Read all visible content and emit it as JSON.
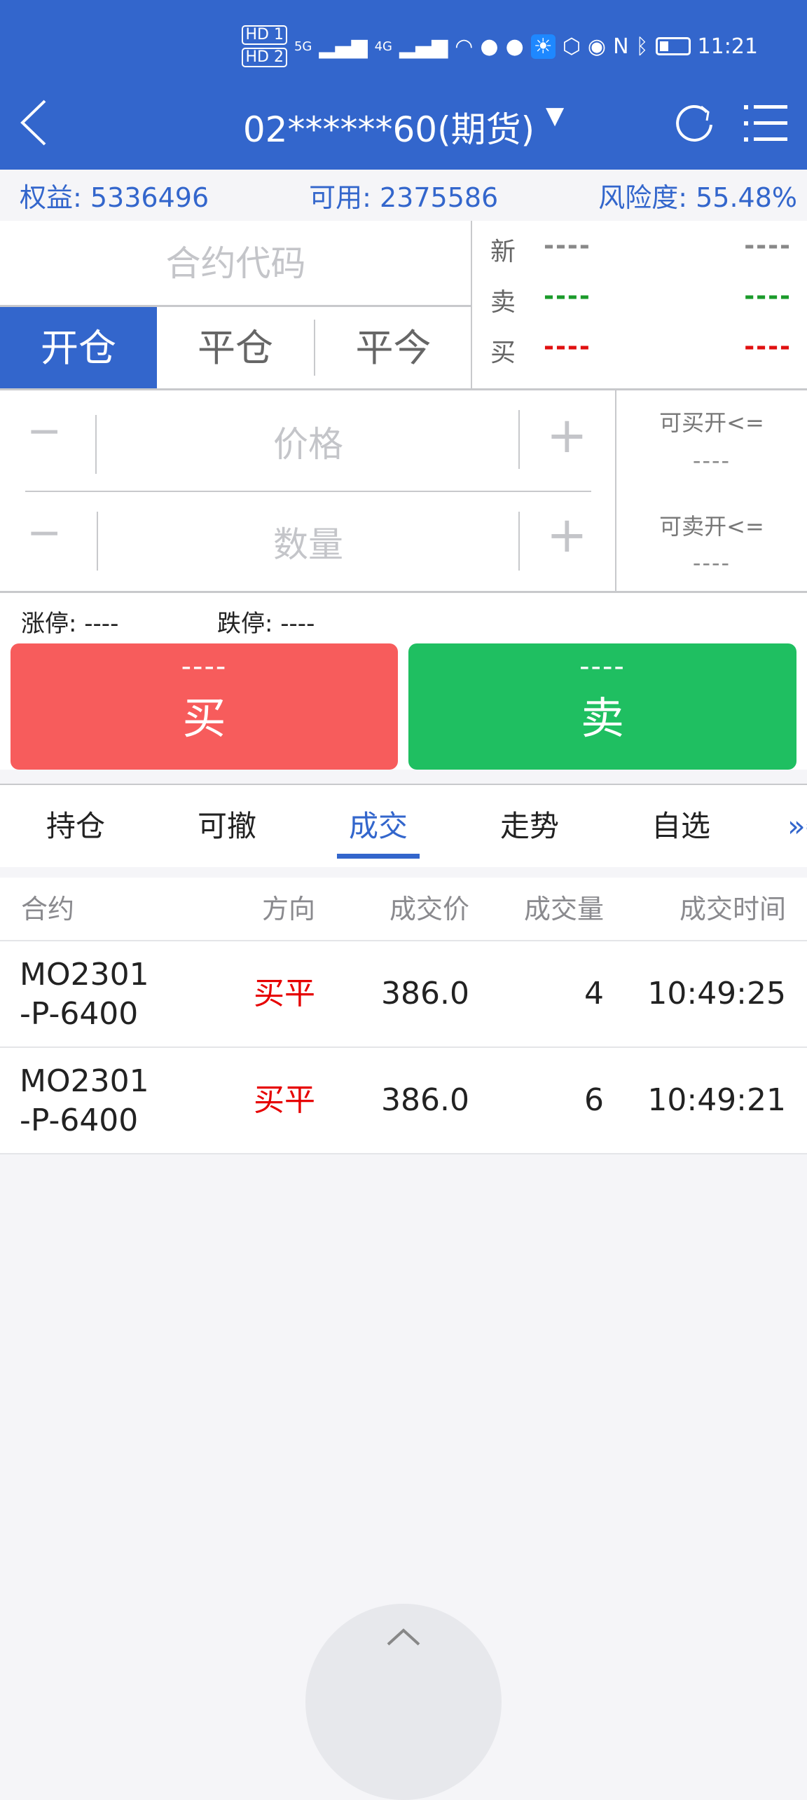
{
  "status_bar": {
    "time": "11:21",
    "sim1": "HD 1",
    "sim2": "HD 2",
    "net1": "5G",
    "net2": "4G",
    "icons": [
      "signal-icon",
      "wifi-icon",
      "wechat-icon",
      "message-icon",
      "weather-icon",
      "hand-icon",
      "eye-icon",
      "nfc-icon",
      "bluetooth-icon",
      "battery-icon"
    ]
  },
  "header": {
    "title": "02******60(期货)",
    "dropdown": "▼"
  },
  "account": {
    "equity_label": "权益: 5336496",
    "available_label": "可用: 2375586",
    "risk_label": "风险度: 55.48%"
  },
  "order": {
    "contract_placeholder": "合约代码",
    "modes": [
      "开仓",
      "平仓",
      "平今"
    ],
    "active_mode": "开仓",
    "quote": [
      {
        "label": "新",
        "left": "----",
        "right": "----",
        "color": "#888888"
      },
      {
        "label": "卖",
        "left": "----",
        "right": "----",
        "color": "#1a9a2a"
      },
      {
        "label": "买",
        "left": "----",
        "right": "----",
        "color": "#e01010"
      }
    ],
    "price_placeholder": "价格",
    "qty_placeholder": "数量",
    "minus": "−",
    "plus": "+",
    "can_buy_label": "可买开<=",
    "can_buy_value": "----",
    "can_sell_label": "可卖开<=",
    "can_sell_value": "----",
    "limit_up": "涨停: ----",
    "limit_down": "跌停: ----",
    "buy": {
      "price": "----",
      "label": "买",
      "color": "#f75c5c"
    },
    "sell": {
      "price": "----",
      "label": "卖",
      "color": "#1fbf61"
    }
  },
  "tabs": {
    "items": [
      "持仓",
      "可撤",
      "成交",
      "走势",
      "自选"
    ],
    "active": "成交",
    "more": "»委"
  },
  "trades": {
    "columns": [
      "合约",
      "方向",
      "成交价",
      "成交量",
      "成交时间"
    ],
    "rows": [
      {
        "contract_line1": "MO2301",
        "contract_line2": "-P-6400",
        "direction": "买平",
        "price": "386.0",
        "qty": "4",
        "time": "10:49:25"
      },
      {
        "contract_line1": "MO2301",
        "contract_line2": "-P-6400",
        "direction": "买平",
        "price": "386.0",
        "qty": "6",
        "time": "10:49:21"
      }
    ]
  },
  "colors": {
    "accent": "#3366cc",
    "buy": "#f75c5c",
    "sell": "#1fbf61",
    "direction_red": "#e60000"
  }
}
